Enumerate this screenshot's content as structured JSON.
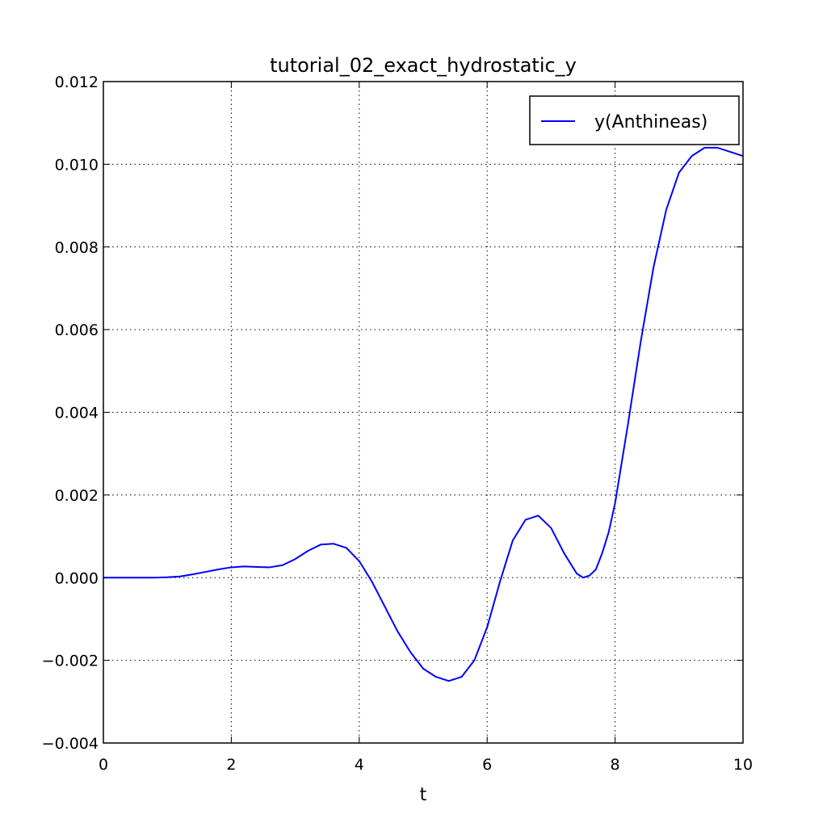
{
  "chart_data": {
    "type": "line",
    "title": "tutorial_02_exact_hydrostatic_y",
    "xlabel": "t",
    "ylabel": "",
    "xlim": [
      0,
      10
    ],
    "ylim": [
      -0.004,
      0.012
    ],
    "xticks": [
      0,
      2,
      4,
      6,
      8,
      10
    ],
    "xtick_labels": [
      "0",
      "2",
      "4",
      "6",
      "8",
      "10"
    ],
    "yticks": [
      -0.004,
      -0.002,
      0.0,
      0.002,
      0.004,
      0.006,
      0.008,
      0.01,
      0.012
    ],
    "ytick_labels": [
      "−0.004",
      "−0.002",
      "0.000",
      "0.002",
      "0.004",
      "0.006",
      "0.008",
      "0.010",
      "0.012"
    ],
    "grid": true,
    "legend_position": "top-right",
    "series": [
      {
        "name": "y(Anthineas)",
        "color": "#0000ff",
        "x": [
          0,
          0.5,
          0.8,
          1.0,
          1.2,
          1.4,
          1.6,
          1.8,
          2.0,
          2.2,
          2.4,
          2.6,
          2.8,
          3.0,
          3.2,
          3.4,
          3.6,
          3.8,
          4.0,
          4.2,
          4.4,
          4.6,
          4.8,
          5.0,
          5.2,
          5.4,
          5.6,
          5.8,
          6.0,
          6.2,
          6.4,
          6.6,
          6.8,
          7.0,
          7.2,
          7.4,
          7.5,
          7.6,
          7.7,
          7.8,
          7.9,
          8.0,
          8.2,
          8.4,
          8.6,
          8.8,
          9.0,
          9.2,
          9.4,
          9.6,
          9.8,
          10.0
        ],
        "y": [
          0.0,
          0.0,
          0.0,
          1e-05,
          3e-05,
          8e-05,
          0.00014,
          0.0002,
          0.00025,
          0.00027,
          0.00026,
          0.00025,
          0.0003,
          0.00045,
          0.00065,
          0.0008,
          0.00082,
          0.00072,
          0.0004,
          -0.0001,
          -0.0007,
          -0.0013,
          -0.0018,
          -0.0022,
          -0.0024,
          -0.0025,
          -0.0024,
          -0.002,
          -0.0012,
          -0.0001,
          0.0009,
          0.0014,
          0.0015,
          0.0012,
          0.0006,
          0.0001,
          0.0,
          5e-05,
          0.0002,
          0.0006,
          0.0011,
          0.0018,
          0.0037,
          0.0057,
          0.0075,
          0.0089,
          0.0098,
          0.0102,
          0.0104,
          0.0104,
          0.0103,
          0.0102
        ]
      }
    ]
  }
}
